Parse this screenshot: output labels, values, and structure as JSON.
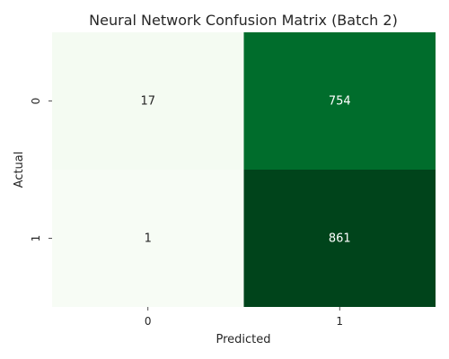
{
  "chart_data": {
    "type": "heatmap",
    "title": "Neural Network Confusion Matrix (Batch 2)",
    "xlabel": "Predicted",
    "ylabel": "Actual",
    "x_categories": [
      "0",
      "1"
    ],
    "y_categories": [
      "0",
      "1"
    ],
    "values": [
      [
        17,
        754
      ],
      [
        1,
        861
      ]
    ],
    "colormap": "Greens",
    "colorbar": false,
    "annotated": true
  }
}
